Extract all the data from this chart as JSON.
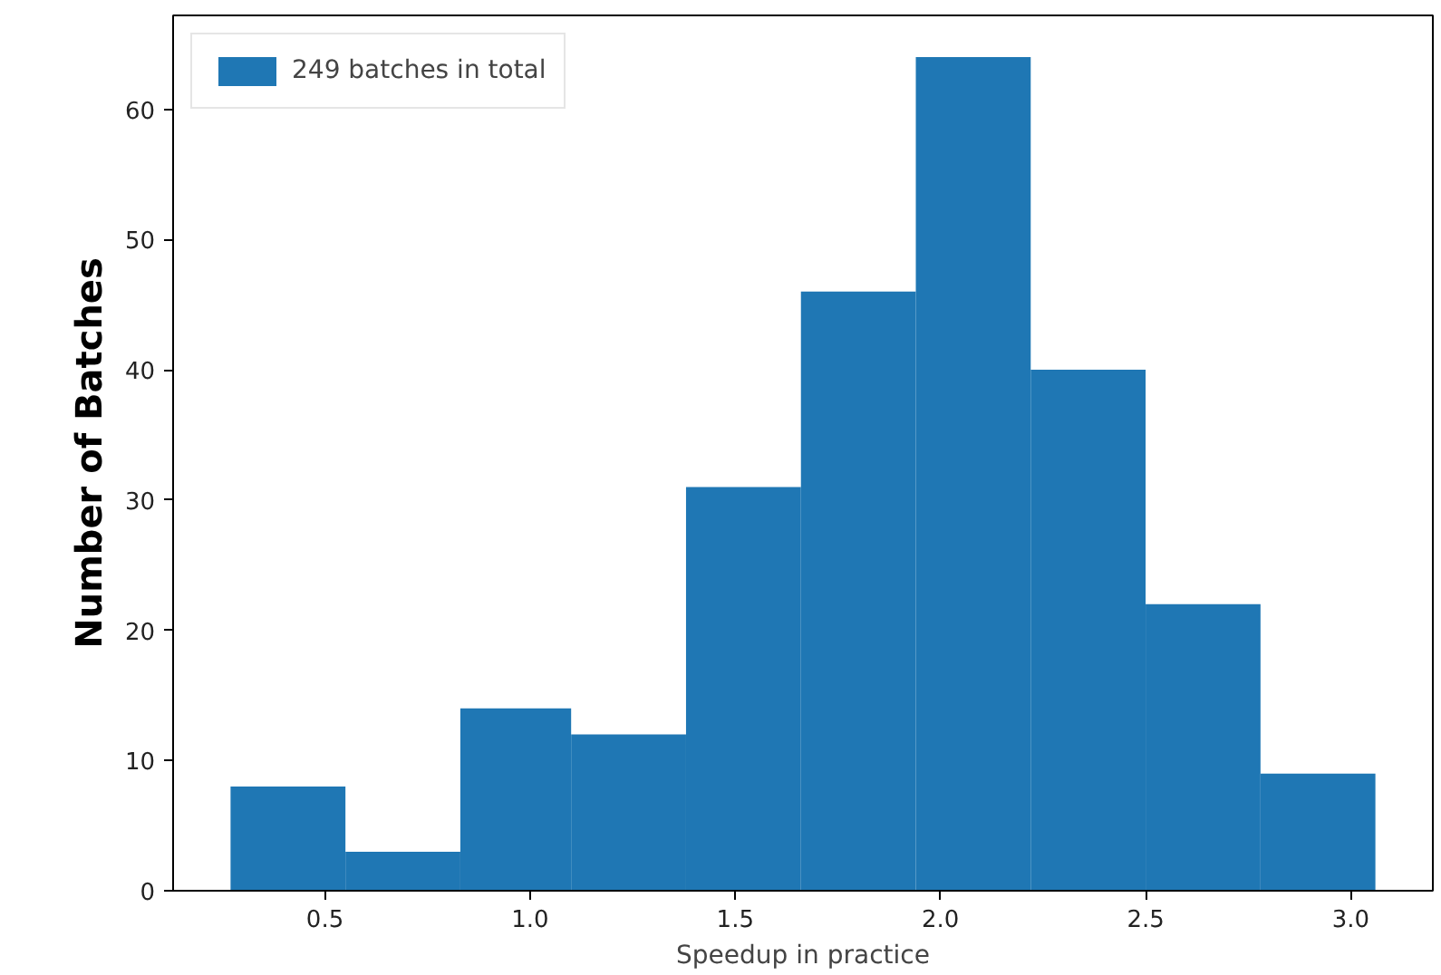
{
  "chart_data": {
    "type": "histogram",
    "xlabel": "Speedup in practice",
    "ylabel": "Number of Batches",
    "bins": [
      0.27,
      0.55,
      0.83,
      1.1,
      1.38,
      1.66,
      1.94,
      2.22,
      2.5,
      2.78,
      3.06
    ],
    "series": [
      {
        "name": "249 batches in total",
        "color": "#1f77b4",
        "values": [
          8,
          3,
          14,
          12,
          31,
          46,
          64,
          40,
          22,
          9
        ]
      }
    ],
    "xlim": [
      0.13,
      3.2
    ],
    "ylim": [
      0,
      67.2
    ],
    "xticks": [
      0.5,
      {
        "value": 1,
        "label": "1.0"
      },
      1.5,
      {
        "value": 2,
        "label": "2.0"
      },
      2.5,
      {
        "value": 3,
        "label": "3.0"
      }
    ],
    "yticks": [
      0,
      10,
      20,
      30,
      40,
      50,
      60
    ],
    "legend": "top left",
    "grid": false
  }
}
